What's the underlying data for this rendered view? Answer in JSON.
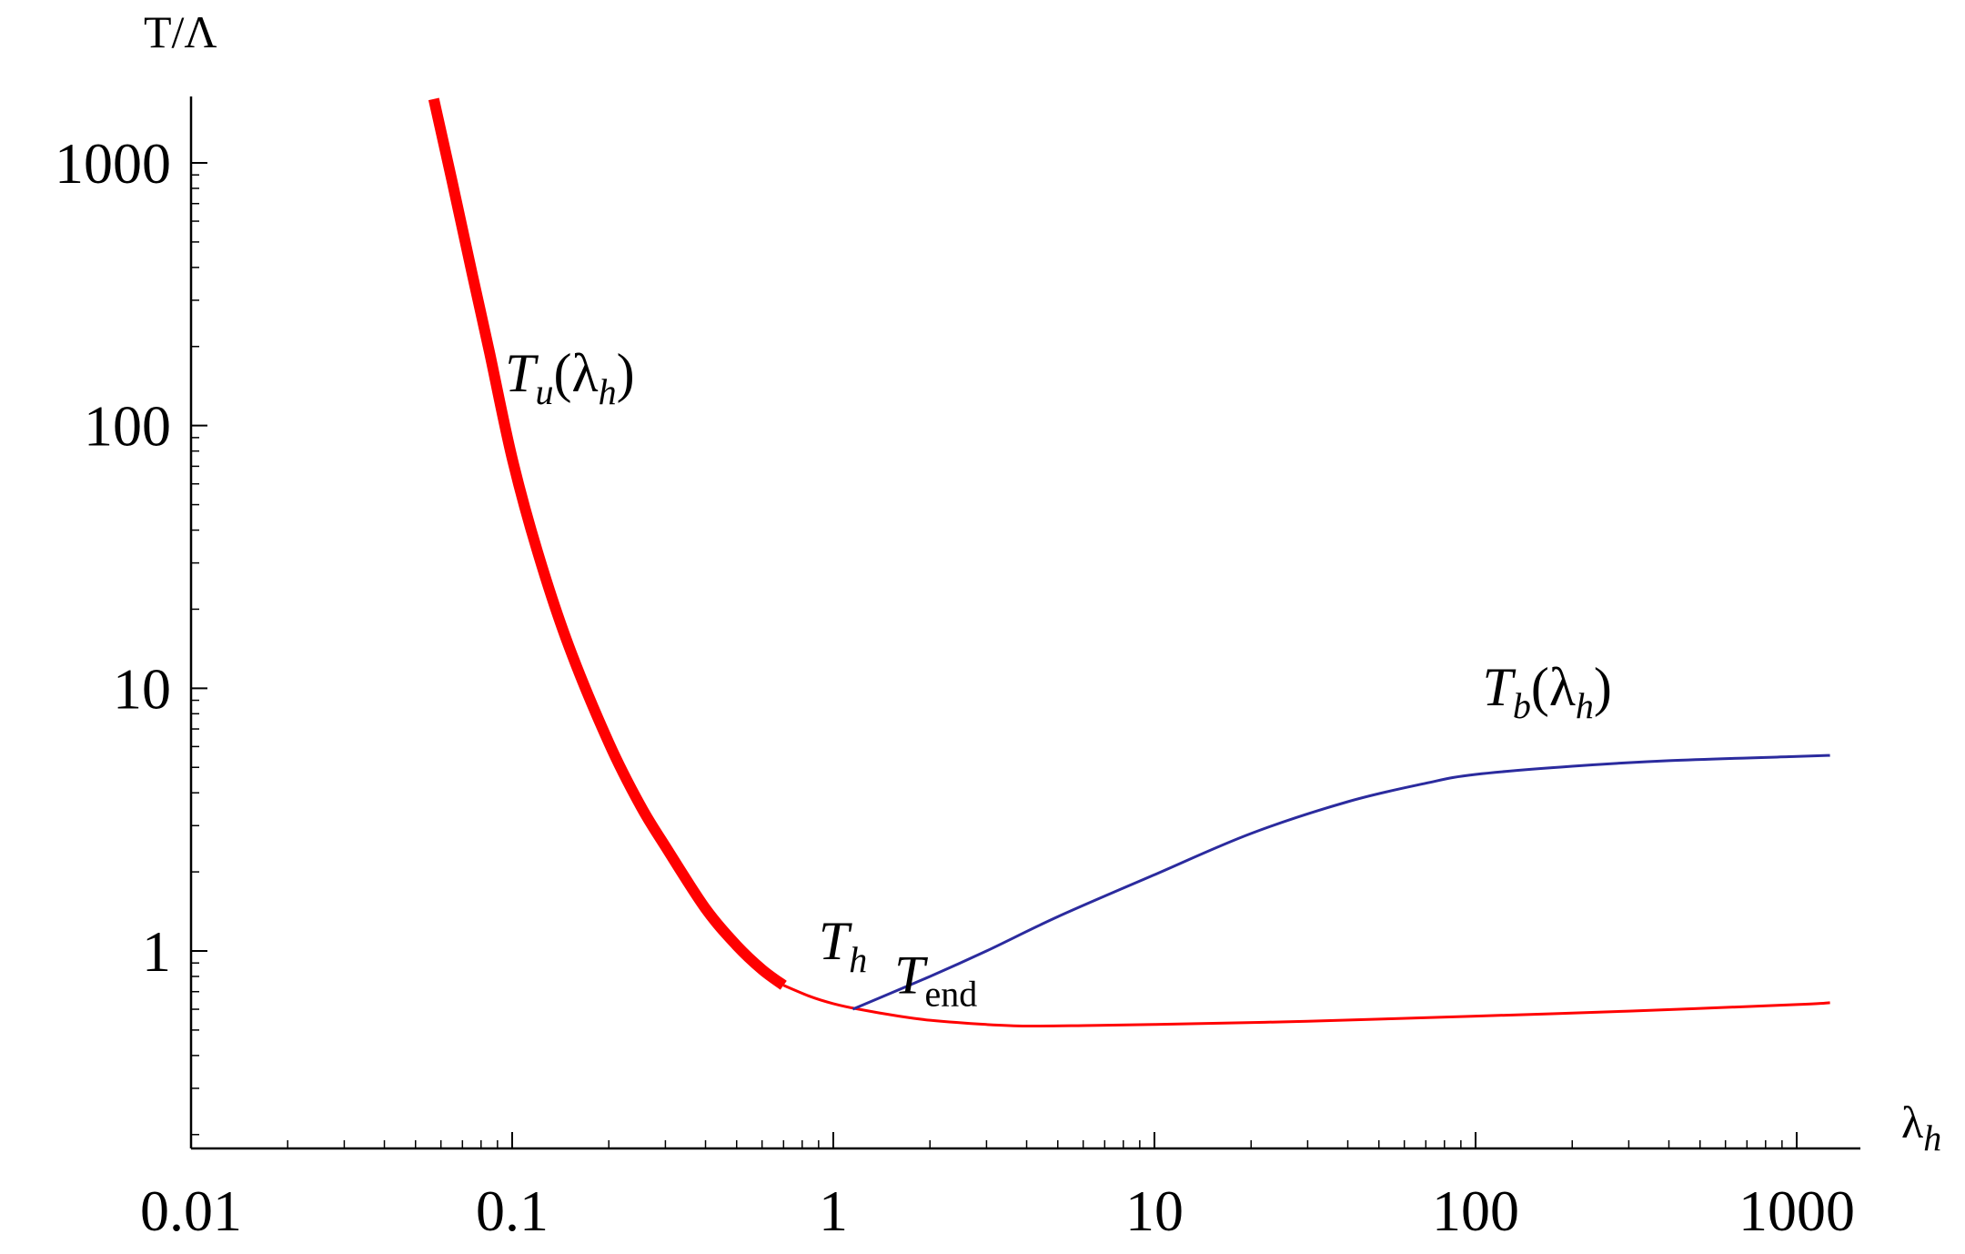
{
  "chart_data": {
    "type": "line",
    "title": "",
    "xlabel": {
      "base": "λ",
      "sub": "h"
    },
    "ylabel": "T/Λ",
    "xscale": "log",
    "yscale": "log",
    "xlim": [
      0.01,
      1300
    ],
    "ylim": [
      0.2,
      1800
    ],
    "grid": false,
    "xticks": [
      {
        "value": 0.01,
        "label": "0.01"
      },
      {
        "value": 0.1,
        "label": "0.1"
      },
      {
        "value": 1,
        "label": "1"
      },
      {
        "value": 10,
        "label": "10"
      },
      {
        "value": 100,
        "label": "100"
      },
      {
        "value": 1000,
        "label": "1000"
      }
    ],
    "yticks": [
      {
        "value": 1,
        "label": "1"
      },
      {
        "value": 10,
        "label": "10"
      },
      {
        "value": 100,
        "label": "100"
      },
      {
        "value": 1000,
        "label": "1000"
      }
    ],
    "series": [
      {
        "name": "Tu_thick",
        "color": "#ff0000",
        "style": "thick",
        "points": [
          [
            0.057,
            1750
          ],
          [
            0.065,
            850
          ],
          [
            0.075,
            380
          ],
          [
            0.085,
            190
          ],
          [
            0.1,
            75
          ],
          [
            0.12,
            33
          ],
          [
            0.15,
            14.5
          ],
          [
            0.2,
            6.2
          ],
          [
            0.25,
            3.6
          ],
          [
            0.3,
            2.5
          ],
          [
            0.4,
            1.45
          ],
          [
            0.5,
            1.05
          ],
          [
            0.6,
            0.85
          ],
          [
            0.7,
            0.74
          ]
        ]
      },
      {
        "name": "Tu_thin",
        "color": "#ff0000",
        "style": "thin",
        "points": [
          [
            0.7,
            0.74
          ],
          [
            0.85,
            0.67
          ],
          [
            1,
            0.63
          ],
          [
            1.2,
            0.6
          ],
          [
            1.6,
            0.565
          ],
          [
            2,
            0.545
          ],
          [
            3,
            0.525
          ],
          [
            4,
            0.518
          ],
          [
            6,
            0.52
          ],
          [
            10,
            0.525
          ],
          [
            30,
            0.54
          ],
          [
            100,
            0.565
          ],
          [
            300,
            0.59
          ],
          [
            1000,
            0.625
          ],
          [
            1270,
            0.635
          ]
        ]
      },
      {
        "name": "Tb",
        "color": "#2b2b9e",
        "style": "thin",
        "points": [
          [
            1.15,
            0.6
          ],
          [
            2,
            0.8
          ],
          [
            3,
            1.0
          ],
          [
            5,
            1.35
          ],
          [
            10,
            1.95
          ],
          [
            20,
            2.8
          ],
          [
            40,
            3.7
          ],
          [
            70,
            4.35
          ],
          [
            100,
            4.7
          ],
          [
            200,
            5.05
          ],
          [
            400,
            5.3
          ],
          [
            1000,
            5.5
          ],
          [
            1270,
            5.55
          ]
        ]
      }
    ],
    "annotations": [
      {
        "name": "Tu-label",
        "base": "T",
        "sub": "u",
        "rest": "(λ",
        "sub2": "h",
        "close": ")",
        "x": 0.095,
        "y": 135
      },
      {
        "name": "Tb-label",
        "base": "T",
        "sub": "b",
        "rest": "(λ",
        "sub2": "h",
        "close": ")",
        "x": 105,
        "y": 8.6
      },
      {
        "name": "Th-label",
        "base": "T",
        "sub": "h",
        "x": 0.9,
        "y": 0.93
      },
      {
        "name": "Tend-label",
        "base": "T",
        "sub": "end",
        "x": 1.55,
        "y": 0.69
      }
    ]
  }
}
